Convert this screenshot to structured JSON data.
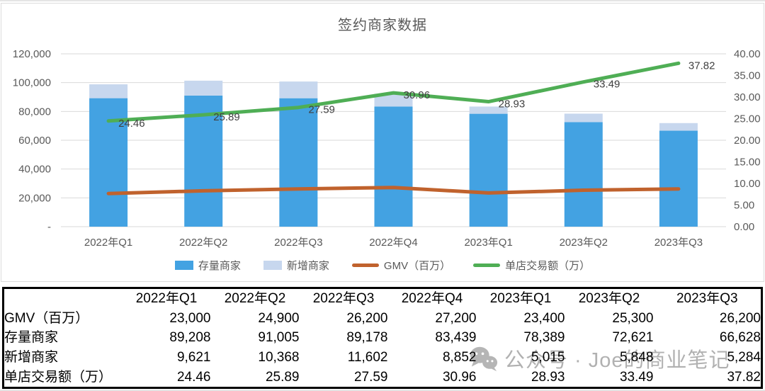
{
  "chart_data": {
    "type": "combo",
    "title": "签约商家数据",
    "categories": [
      "2022年Q1",
      "2022年Q2",
      "2022年Q3",
      "2022年Q4",
      "2023年Q1",
      "2023年Q2",
      "2023年Q3"
    ],
    "left_axis": {
      "min": 0,
      "max": 120000,
      "step": 20000,
      "zero_label": "-"
    },
    "right_axis": {
      "min": 0,
      "max": 40,
      "step": 5,
      "decimals": 2
    },
    "grid": true,
    "legend_position": "bottom",
    "series": [
      {
        "name": "存量商家",
        "chart": "bar",
        "stack": true,
        "axis": "left",
        "color": "#43A2E2",
        "values": [
          89208,
          91005,
          89178,
          83439,
          78389,
          72621,
          66628
        ]
      },
      {
        "name": "新增商家",
        "chart": "bar",
        "stack": true,
        "axis": "left",
        "color": "#C7D7EE",
        "values": [
          9621,
          10368,
          11602,
          8852,
          5015,
          5848,
          5284
        ]
      },
      {
        "name": "GMV（百万）",
        "chart": "line",
        "axis": "left",
        "color": "#C0622D",
        "show_labels": false,
        "values": [
          23000,
          24900,
          26200,
          27200,
          23400,
          25300,
          26200
        ]
      },
      {
        "name": "单店交易额（万）",
        "chart": "line",
        "axis": "right",
        "color": "#4FAE55",
        "show_labels": true,
        "values": [
          24.46,
          25.89,
          27.59,
          30.96,
          28.93,
          33.49,
          37.82
        ]
      }
    ]
  },
  "table": {
    "corner": "",
    "columns": [
      "2022年Q1",
      "2022年Q2",
      "2022年Q3",
      "2022年Q4",
      "2023年Q1",
      "2023年Q2",
      "2023年Q3"
    ],
    "rows": [
      {
        "label": "GMV（百万）",
        "values": [
          "23,000",
          "24,900",
          "26,200",
          "27,200",
          "23,400",
          "25,300",
          "26,200"
        ]
      },
      {
        "label": "存量商家",
        "values": [
          "89,208",
          "91,005",
          "89,178",
          "83,439",
          "78,389",
          "72,621",
          "66,628"
        ]
      },
      {
        "label": "新增商家",
        "values": [
          "9,621",
          "10,368",
          "11,602",
          "8,852",
          "5,015",
          "5,848",
          "5,284"
        ]
      },
      {
        "label": "单店交易额（万）",
        "values": [
          "24.46",
          "25.89",
          "27.59",
          "30.96",
          "28.93",
          "33.49",
          "37.82"
        ]
      }
    ]
  },
  "watermark": {
    "icon": "wechat-icon",
    "text": "公众号 · Joe的商业笔记"
  },
  "colors": {
    "bar_primary": "#43A2E2",
    "bar_secondary": "#C7D7EE",
    "gmv_line": "#C0622D",
    "transaction_line": "#4FAE55",
    "axis_text": "#595959",
    "grid_line": "#D9D9D9",
    "data_label": "#404040"
  }
}
